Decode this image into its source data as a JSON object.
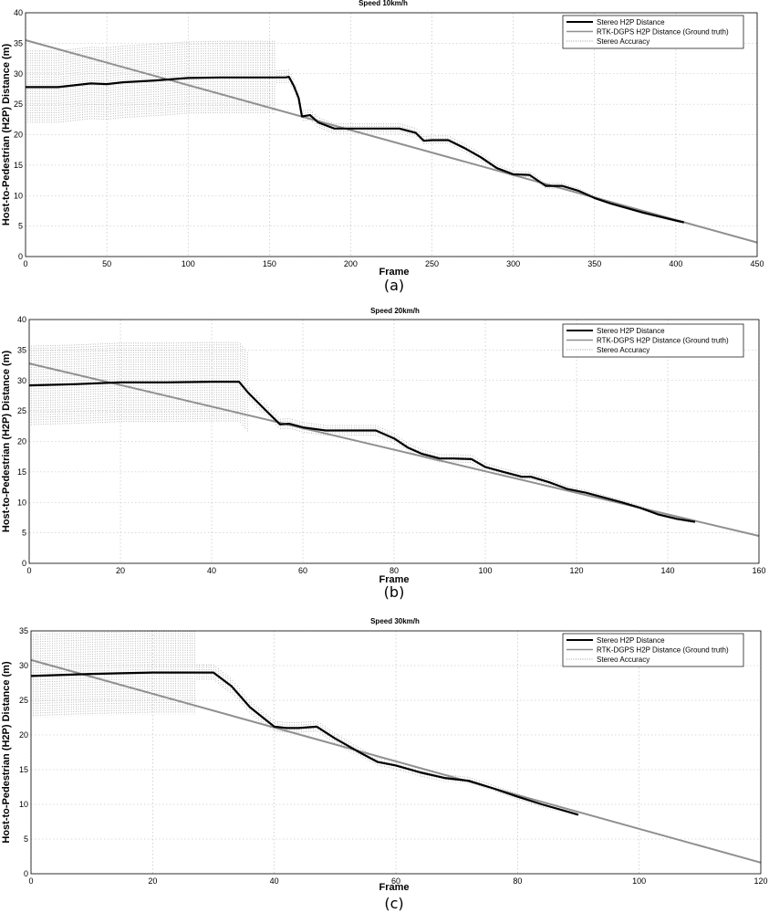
{
  "chart_data": [
    {
      "type": "line",
      "title": "Speed 10km/h",
      "xlabel": "Frame",
      "ylabel": "Host-to-Pedestrian (H2P) Distance (m)",
      "caption": "(a)",
      "xlim": [
        0,
        450
      ],
      "ylim": [
        0,
        40
      ],
      "xticks": [
        "0",
        "50",
        "100",
        "150",
        "200",
        "250",
        "300",
        "350",
        "400",
        "450"
      ],
      "yticks": [
        "0",
        "5",
        "10",
        "15",
        "20",
        "25",
        "30",
        "35",
        "40"
      ],
      "grid": true,
      "legend_position": "top-right",
      "series": [
        {
          "name": "Stereo H2P Distance",
          "color": "#000000",
          "x": [
            0,
            20,
            40,
            50,
            60,
            80,
            100,
            120,
            140,
            160,
            162,
            165,
            168,
            170,
            175,
            180,
            190,
            200,
            210,
            220,
            230,
            240,
            245,
            250,
            260,
            270,
            280,
            290,
            300,
            310,
            320,
            330,
            340,
            350,
            360,
            380,
            400,
            405
          ],
          "y": [
            27.8,
            27.8,
            28.4,
            28.3,
            28.6,
            28.9,
            29.3,
            29.4,
            29.4,
            29.4,
            29.5,
            28.0,
            26.0,
            23.0,
            23.2,
            22.0,
            21.0,
            21.0,
            21.0,
            21.0,
            21.0,
            20.3,
            19.0,
            19.1,
            19.1,
            17.8,
            16.3,
            14.5,
            13.5,
            13.4,
            11.6,
            11.6,
            10.8,
            9.6,
            8.7,
            7.2,
            5.9,
            5.6
          ]
        },
        {
          "name": "RTK-DGPS H2P Distance (Ground truth)",
          "color": "#909090",
          "x": [
            0,
            450
          ],
          "y": [
            35.5,
            2.3
          ]
        },
        {
          "name": "Stereo Accuracy",
          "color": "#9a9a9a",
          "x": [],
          "y": []
        }
      ]
    },
    {
      "type": "line",
      "title": "Speed 20km/h",
      "xlabel": "Frame",
      "ylabel": "Host-to-Pedestrian (H2P) Distance (m)",
      "caption": "(b)",
      "xlim": [
        0,
        160
      ],
      "ylim": [
        0,
        40
      ],
      "xticks": [
        "0",
        "20",
        "40",
        "60",
        "80",
        "100",
        "120",
        "140",
        "160"
      ],
      "yticks": [
        "0",
        "5",
        "10",
        "15",
        "20",
        "25",
        "30",
        "35",
        "40"
      ],
      "grid": true,
      "legend_position": "top-right",
      "series": [
        {
          "name": "Stereo H2P Distance",
          "color": "#000000",
          "x": [
            0,
            10,
            20,
            30,
            40,
            46,
            48,
            52,
            55,
            57,
            60,
            65,
            70,
            76,
            80,
            83,
            86,
            90,
            93,
            97,
            100,
            104,
            108,
            110,
            114,
            118,
            122,
            126,
            130,
            134,
            138,
            142,
            146
          ],
          "y": [
            29.2,
            29.4,
            29.7,
            29.7,
            29.8,
            29.8,
            28.0,
            25.0,
            22.8,
            22.9,
            22.3,
            21.8,
            21.8,
            21.8,
            20.5,
            19.0,
            18.0,
            17.2,
            17.2,
            17.1,
            15.8,
            15.0,
            14.2,
            14.2,
            13.3,
            12.2,
            11.6,
            10.8,
            10.0,
            9.1,
            8.0,
            7.3,
            6.8
          ]
        },
        {
          "name": "RTK-DGPS H2P Distance (Ground truth)",
          "color": "#909090",
          "x": [
            0,
            160
          ],
          "y": [
            32.8,
            4.5
          ]
        },
        {
          "name": "Stereo Accuracy",
          "color": "#9a9a9a",
          "x": [],
          "y": []
        }
      ]
    },
    {
      "type": "line",
      "title": "Speed 30km/h",
      "xlabel": "Frame",
      "ylabel": "Host-to-Pedestrian (H2P) Distance (m)",
      "caption": "(c)",
      "xlim": [
        0,
        120
      ],
      "ylim": [
        0,
        35
      ],
      "xticks": [
        "0",
        "20",
        "40",
        "60",
        "80",
        "100",
        "120"
      ],
      "yticks": [
        "0",
        "5",
        "10",
        "15",
        "20",
        "25",
        "30",
        "35"
      ],
      "grid": true,
      "legend_position": "top-right",
      "series": [
        {
          "name": "Stereo H2P Distance",
          "color": "#000000",
          "x": [
            0,
            10,
            20,
            25,
            30,
            33,
            36,
            40,
            42,
            44,
            47,
            50,
            54,
            57,
            60,
            64,
            68,
            72,
            76,
            80,
            84,
            88,
            90
          ],
          "y": [
            28.5,
            28.8,
            29.0,
            29.0,
            29.0,
            27.0,
            24.0,
            21.2,
            21.0,
            21.0,
            21.2,
            19.5,
            17.5,
            16.1,
            15.6,
            14.6,
            13.8,
            13.4,
            12.3,
            11.1,
            10.0,
            9.0,
            8.5
          ]
        },
        {
          "name": "RTK-DGPS H2P Distance (Ground truth)",
          "color": "#909090",
          "x": [
            0,
            120
          ],
          "y": [
            30.8,
            1.6
          ]
        },
        {
          "name": "Stereo Accuracy",
          "color": "#9a9a9a",
          "x": [],
          "y": []
        }
      ]
    }
  ]
}
